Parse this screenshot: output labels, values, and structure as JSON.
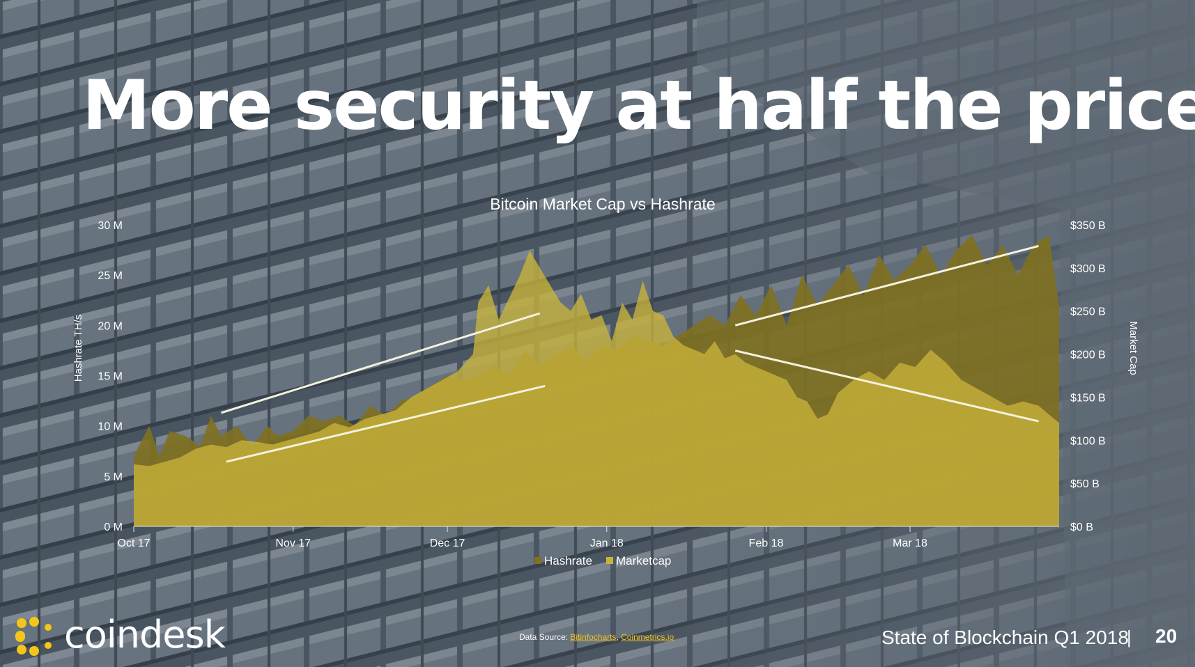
{
  "slide": {
    "title": "More security at half the price",
    "title_dot": ".",
    "brand": "coindesk",
    "source_label": "Data Source:",
    "source_links": [
      "Bitinfocharts",
      "Coinmetrics.io"
    ],
    "source_sep": ",",
    "report": "State of Blockchain Q1 2018",
    "separator": "|",
    "page_number": "20"
  },
  "colors": {
    "accent": "#f5c518",
    "hashrate": "#807020",
    "marketcap": "#c9b43a",
    "trend": "#f4f1de"
  },
  "chart_data": {
    "type": "area",
    "title": "Bitcoin Market Cap vs Hashrate",
    "ylabel_left": "Hashrate TH/s",
    "ylabel_right": "Market Cap",
    "ylim_left": [
      0,
      30
    ],
    "ylim_right": [
      0,
      350
    ],
    "yticks_left": [
      "0 M",
      "5 M",
      "10 M",
      "15 M",
      "20 M",
      "25 M",
      "30 M"
    ],
    "yticks_right": [
      "$0 B",
      "$50 B",
      "$100 B",
      "$150 B",
      "$200 B",
      "$250 B",
      "$300 B",
      "$350 B"
    ],
    "x_ticks": [
      "Oct 17",
      "Nov 17",
      "Dec 17",
      "Jan 18",
      "Feb 18",
      "Mar 18"
    ],
    "x_tick_pos": [
      0,
      31,
      61,
      92,
      123,
      151
    ],
    "x_max": 180,
    "legend": [
      "Hashrate",
      "Marketcap"
    ],
    "legend_placement": "bottom-center",
    "grid": false,
    "series": [
      {
        "name": "Hashrate",
        "unit": "M TH/s",
        "x": [
          0,
          3,
          5,
          7,
          10,
          13,
          15,
          17,
          20,
          23,
          26,
          28,
          31,
          34,
          37,
          40,
          43,
          46,
          49,
          52,
          55,
          58,
          61,
          64,
          67,
          70,
          73,
          76,
          79,
          82,
          85,
          88,
          91,
          94,
          97,
          100,
          103,
          106,
          109,
          112,
          115,
          118,
          121,
          124,
          127,
          130,
          133,
          136,
          139,
          142,
          145,
          148,
          151,
          154,
          157,
          160,
          163,
          166,
          169,
          172,
          175,
          178,
          180
        ],
        "values": [
          7.0,
          10.0,
          7.0,
          9.5,
          9.0,
          8.0,
          11.0,
          9.0,
          10.0,
          8.0,
          10.0,
          9.0,
          9.5,
          11.0,
          10.5,
          11.0,
          10.0,
          12.0,
          11.0,
          12.5,
          13.0,
          14.0,
          15.0,
          14.5,
          15.0,
          16.0,
          15.0,
          17.5,
          16.0,
          17.0,
          18.0,
          16.5,
          18.0,
          17.5,
          19.0,
          18.5,
          18.0,
          19.0,
          20.0,
          21.0,
          20.0,
          23.0,
          21.0,
          24.0,
          20.0,
          25.0,
          22.0,
          24.0,
          26.0,
          23.0,
          27.0,
          24.5,
          26.0,
          28.0,
          25.0,
          27.5,
          29.0,
          26.0,
          28.0,
          25.0,
          28.0,
          29.0,
          22.0
        ]
      },
      {
        "name": "Marketcap",
        "unit": "$B",
        "x": [
          0,
          3,
          6,
          9,
          12,
          15,
          18,
          21,
          24,
          27,
          30,
          33,
          36,
          39,
          42,
          45,
          48,
          51,
          54,
          57,
          60,
          63,
          66,
          67,
          69,
          71,
          73,
          75,
          77,
          79,
          81,
          83,
          85,
          87,
          89,
          91,
          93,
          95,
          97,
          99,
          101,
          103,
          105,
          107,
          109,
          111,
          113,
          115,
          117,
          119,
          121,
          123,
          125,
          127,
          129,
          131,
          133,
          135,
          137,
          140,
          143,
          146,
          149,
          152,
          155,
          158,
          161,
          164,
          167,
          170,
          173,
          176,
          178,
          180
        ],
        "values": [
          72,
          70,
          75,
          80,
          90,
          95,
          92,
          100,
          98,
          95,
          100,
          105,
          110,
          120,
          115,
          125,
          130,
          135,
          150,
          160,
          170,
          180,
          200,
          260,
          280,
          240,
          265,
          290,
          320,
          300,
          280,
          260,
          250,
          270,
          240,
          245,
          215,
          260,
          240,
          285,
          250,
          245,
          220,
          210,
          205,
          200,
          215,
          195,
          200,
          190,
          185,
          180,
          175,
          170,
          150,
          145,
          125,
          130,
          155,
          170,
          180,
          170,
          190,
          185,
          205,
          190,
          170,
          160,
          150,
          140,
          145,
          140,
          130,
          120
        ]
      }
    ],
    "trend_lines": [
      {
        "series": "Hashrate",
        "x": [
          17,
          79
        ],
        "values": [
          11.3,
          21.2
        ]
      },
      {
        "series": "Hashrate",
        "x": [
          117,
          176
        ],
        "values": [
          20.0,
          27.9
        ]
      },
      {
        "series": "Marketcap",
        "x": [
          18,
          80
        ],
        "values": [
          75,
          163
        ]
      },
      {
        "series": "Marketcap",
        "x": [
          117,
          176
        ],
        "values": [
          204,
          122
        ]
      }
    ]
  }
}
